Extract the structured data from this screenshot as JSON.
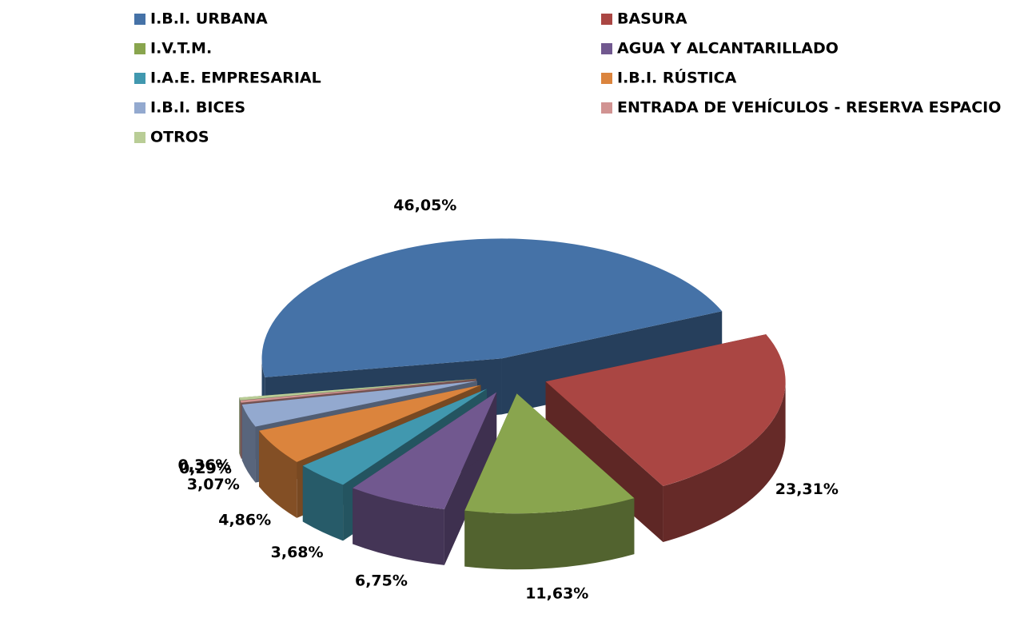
{
  "chart_data": {
    "type": "pie3d",
    "categories": [
      "I.B.I. URBANA",
      "BASURA",
      "I.V.T.M.",
      "AGUA Y ALCANTARILLADO",
      "I.A.E. EMPRESARIAL",
      "I.B.I. RÚSTICA",
      "I.B.I. BICES",
      "ENTRADA DE VEHÍCULOS - RESERVA ESPACIO",
      "OTROS"
    ],
    "values": [
      46.05,
      23.31,
      11.63,
      6.75,
      3.68,
      4.86,
      3.07,
      0.29,
      0.36
    ],
    "value_labels": [
      "46,05%",
      "23,31%",
      "11,63%",
      "6,75%",
      "3,68%",
      "4,86%",
      "3,07%",
      "0,29%",
      "0,36%"
    ],
    "colors": [
      "#4572a7",
      "#aa4643",
      "#89a54e",
      "#71588f",
      "#4198af",
      "#db843d",
      "#93a9cf",
      "#d19392",
      "#b9cd96"
    ],
    "legend": "top"
  }
}
